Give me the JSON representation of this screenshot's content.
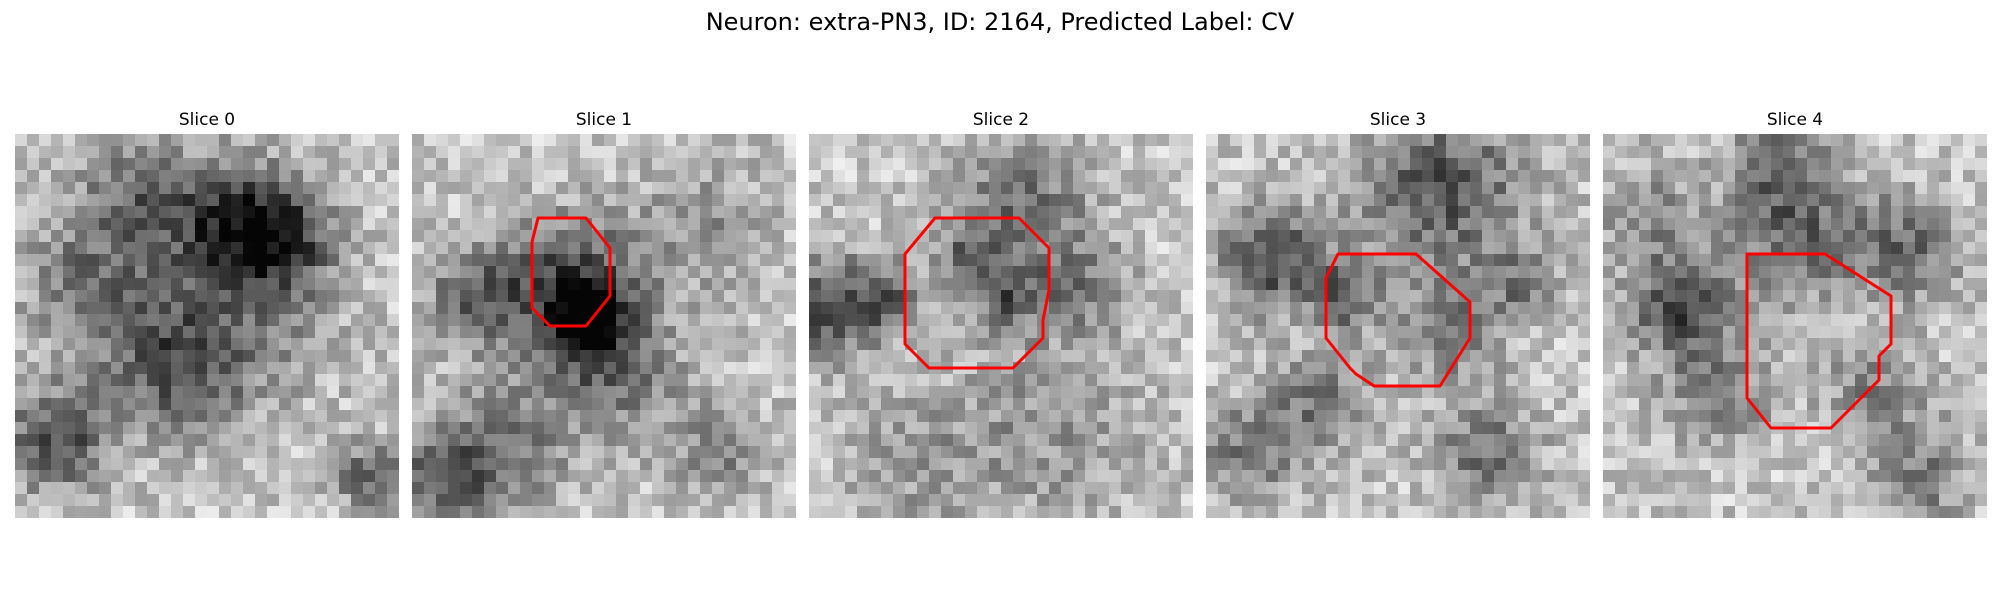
{
  "figure": {
    "title": "Neuron: extra-PN3, ID: 2164, Predicted Label: CV"
  },
  "panels": [
    {
      "title": "Slice 0",
      "has_contour": false
    },
    {
      "title": "Slice 1",
      "has_contour": true
    },
    {
      "title": "Slice 2",
      "has_contour": true
    },
    {
      "title": "Slice 3",
      "has_contour": true
    },
    {
      "title": "Slice 4",
      "has_contour": true
    }
  ],
  "style": {
    "colormap": "gray",
    "contour_color": "#ff0000"
  }
}
